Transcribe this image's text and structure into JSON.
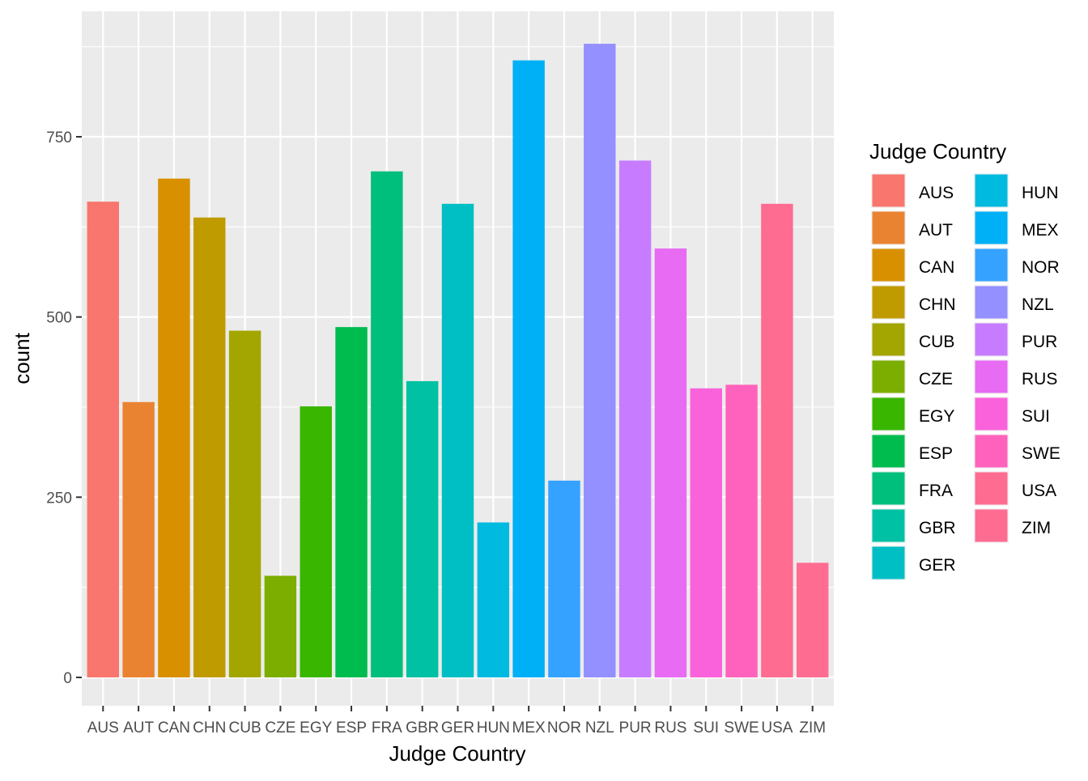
{
  "chart_data": {
    "type": "bar",
    "xlabel": "Judge Country",
    "ylabel": "count",
    "ylim": [
      0,
      900
    ],
    "y_ticks": [
      0,
      250,
      500,
      750
    ],
    "grid": true,
    "legend_position": "right",
    "legend_title": "Judge Country",
    "categories": [
      "AUS",
      "AUT",
      "CAN",
      "CHN",
      "CUB",
      "CZE",
      "EGY",
      "ESP",
      "FRA",
      "GBR",
      "GER",
      "HUN",
      "MEX",
      "NOR",
      "NZL",
      "PUR",
      "RUS",
      "SUI",
      "SWE",
      "USA",
      "ZIM"
    ],
    "values": [
      660,
      382,
      692,
      638,
      481,
      141,
      376,
      486,
      702,
      411,
      657,
      215,
      856,
      273,
      879,
      717,
      595,
      401,
      406,
      657,
      159
    ],
    "colors": [
      "#F8766D",
      "#EA8331",
      "#D89000",
      "#C09B00",
      "#A3A500",
      "#7CAE00",
      "#39B600",
      "#00BB4E",
      "#00BF7D",
      "#00C1A3",
      "#00BFC4",
      "#00BAE0",
      "#00B0F6",
      "#35A2FF",
      "#9590FF",
      "#C77CFF",
      "#E76BF3",
      "#FA62DB",
      "#FF62BC",
      "#FF6C91",
      "#FF6C91"
    ]
  }
}
